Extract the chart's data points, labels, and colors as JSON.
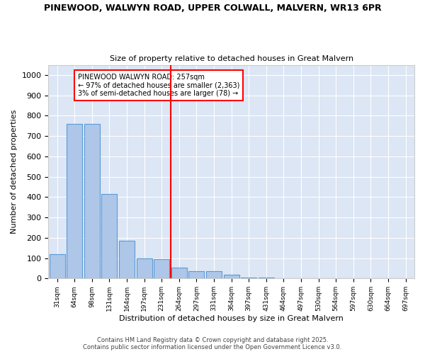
{
  "title_line1": "PINEWOOD, WALWYN ROAD, UPPER COLWALL, MALVERN, WR13 6PR",
  "title_line2": "Size of property relative to detached houses in Great Malvern",
  "xlabel": "Distribution of detached houses by size in Great Malvern",
  "ylabel": "Number of detached properties",
  "categories": [
    "31sqm",
    "64sqm",
    "98sqm",
    "131sqm",
    "164sqm",
    "197sqm",
    "231sqm",
    "264sqm",
    "297sqm",
    "331sqm",
    "364sqm",
    "397sqm",
    "431sqm",
    "464sqm",
    "497sqm",
    "530sqm",
    "564sqm",
    "597sqm",
    "630sqm",
    "664sqm",
    "697sqm"
  ],
  "values": [
    120,
    760,
    760,
    415,
    185,
    100,
    95,
    55,
    35,
    35,
    20,
    5,
    3,
    2,
    1,
    1,
    1,
    0,
    0,
    0,
    1
  ],
  "bar_color": "#aec6e8",
  "bar_edge_color": "#5b9bd5",
  "vline_x": 6.5,
  "vline_color": "red",
  "ylim": [
    0,
    1050
  ],
  "yticks": [
    0,
    100,
    200,
    300,
    400,
    500,
    600,
    700,
    800,
    900,
    1000
  ],
  "legend_title": "PINEWOOD WALWYN ROAD: 257sqm",
  "legend_line2": "← 97% of detached houses are smaller (2,363)",
  "legend_line3": "3% of semi-detached houses are larger (78) →",
  "bg_color": "#dce6f5",
  "footer_line1": "Contains HM Land Registry data © Crown copyright and database right 2025.",
  "footer_line2": "Contains public sector information licensed under the Open Government Licence v3.0."
}
